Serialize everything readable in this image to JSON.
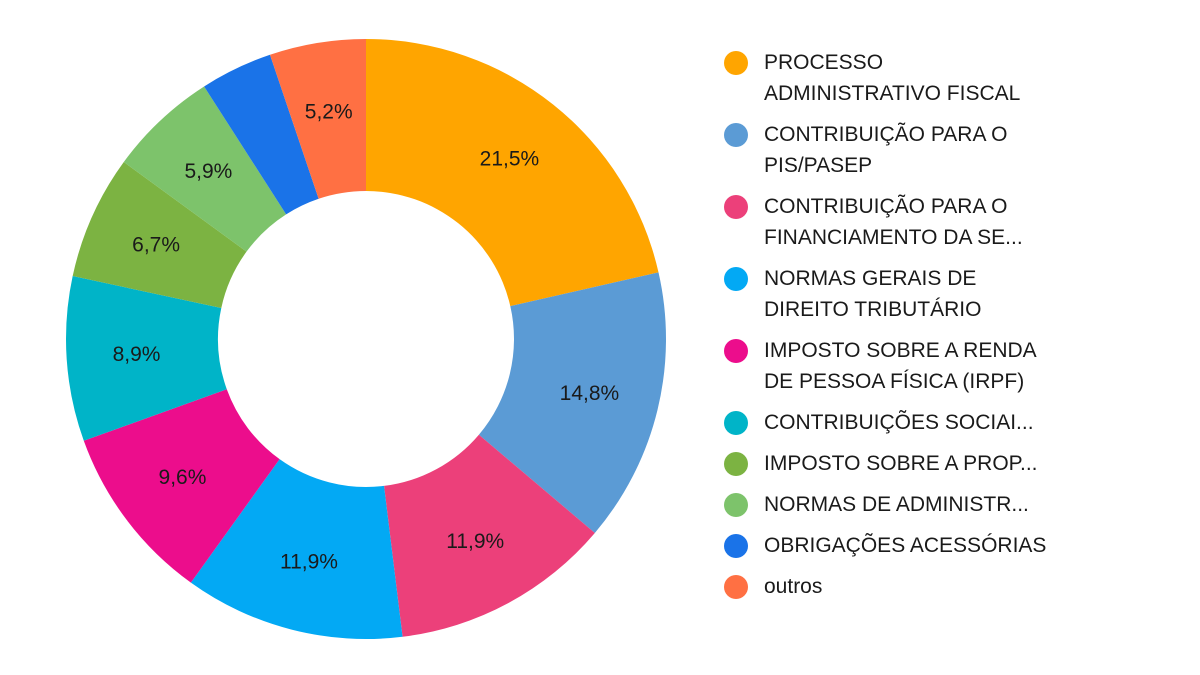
{
  "chart_data": {
    "type": "pie",
    "donut": true,
    "title": "",
    "legend_position": "right",
    "series": [
      {
        "name": "PROCESSO ADMINISTRATIVO FISCAL",
        "legend": "PROCESSO\nADMINISTRATIVO FISCAL",
        "value": 21.5,
        "label": "21,5%",
        "color": "#FFA500"
      },
      {
        "name": "CONTRIBUIÇÃO PARA O PIS/PASEP",
        "legend": "CONTRIBUIÇÃO PARA O\nPIS/PASEP",
        "value": 14.8,
        "label": "14,8%",
        "color": "#5B9BD5"
      },
      {
        "name": "CONTRIBUIÇÃO PARA O FINANCIAMENTO DA SE...",
        "legend": "CONTRIBUIÇÃO PARA O\nFINANCIAMENTO DA SE...",
        "value": 11.9,
        "label": "11,9%",
        "color": "#EC407A"
      },
      {
        "name": "NORMAS GERAIS DE DIREITO TRIBUTÁRIO",
        "legend": "NORMAS GERAIS DE\nDIREITO TRIBUTÁRIO",
        "value": 11.9,
        "label": "11,9%",
        "color": "#03A9F4"
      },
      {
        "name": "IMPOSTO SOBRE A RENDA DE PESSOA FÍSICA (IRPF)",
        "legend": "IMPOSTO SOBRE A RENDA\nDE PESSOA FÍSICA (IRPF)",
        "value": 9.6,
        "label": "9,6%",
        "color": "#EC0D8C"
      },
      {
        "name": "CONTRIBUIÇÕES SOCIAI...",
        "legend": "CONTRIBUIÇÕES SOCIAI...",
        "value": 8.9,
        "label": "8,9%",
        "color": "#00B4C8"
      },
      {
        "name": "IMPOSTO SOBRE A PROP...",
        "legend": "IMPOSTO SOBRE A PROP...",
        "value": 6.7,
        "label": "6,7%",
        "color": "#7CB342"
      },
      {
        "name": "NORMAS DE ADMINISTR...",
        "legend": "NORMAS DE ADMINISTR...",
        "value": 5.9,
        "label": "5,9%",
        "color": "#7DC36B"
      },
      {
        "name": "OBRIGAÇÕES ACESSÓRIAS",
        "legend": "OBRIGAÇÕES ACESSÓRIAS",
        "value": 3.9,
        "label": "",
        "color": "#1A73E8"
      },
      {
        "name": "outros",
        "legend": "outros",
        "value": 5.2,
        "label": "5,2%",
        "color": "#FF7043"
      }
    ]
  }
}
